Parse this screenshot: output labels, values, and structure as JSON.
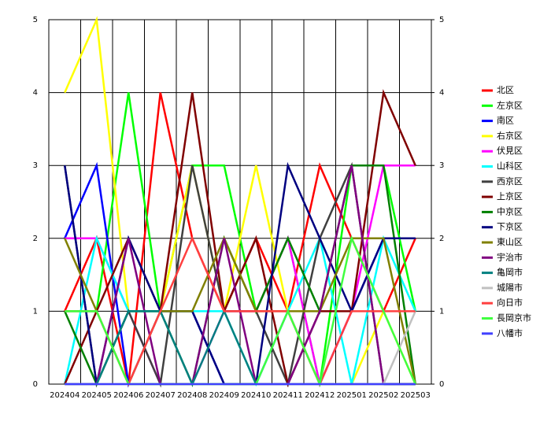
{
  "chart_data": {
    "type": "line",
    "categories": [
      "202404",
      "202405",
      "202406",
      "202407",
      "202408",
      "202409",
      "202410",
      "202411",
      "202412",
      "202501",
      "202502",
      "202503"
    ],
    "ylim": [
      0,
      5
    ],
    "yticks": [
      0,
      1,
      2,
      3,
      4,
      5
    ],
    "y2lim": [
      0,
      5
    ],
    "y2ticks": [
      0,
      1,
      2,
      3,
      4,
      5
    ],
    "grid": true,
    "legend": "right",
    "series": [
      {
        "name": "北区",
        "color": "#ff0000",
        "values": [
          1,
          2,
          0,
          4,
          2,
          1,
          2,
          1,
          3,
          2,
          1,
          2
        ]
      },
      {
        "name": "左京区",
        "color": "#00ff00",
        "values": [
          1,
          1,
          4,
          1,
          3,
          3,
          1,
          2,
          0,
          3,
          3,
          1
        ]
      },
      {
        "name": "南区",
        "color": "#0000ff",
        "values": [
          2,
          3,
          0,
          1,
          1,
          0,
          0,
          1,
          0,
          1,
          2,
          2
        ]
      },
      {
        "name": "右京区",
        "color": "#ffff00",
        "values": [
          4,
          5,
          1,
          1,
          3,
          1,
          3,
          1,
          0,
          0,
          1,
          0
        ]
      },
      {
        "name": "伏見区",
        "color": "#ff00ff",
        "values": [
          2,
          2,
          1,
          0,
          0,
          1,
          1,
          2,
          0,
          1,
          3,
          3
        ]
      },
      {
        "name": "山科区",
        "color": "#00ffff",
        "values": [
          0,
          2,
          1,
          1,
          1,
          1,
          0,
          1,
          2,
          0,
          2,
          1
        ]
      },
      {
        "name": "西京区",
        "color": "#404040",
        "values": [
          3,
          0,
          1,
          0,
          3,
          1,
          1,
          0,
          2,
          3,
          0,
          0
        ]
      },
      {
        "name": "上京区",
        "color": "#800000",
        "values": [
          0,
          1,
          2,
          1,
          4,
          1,
          2,
          0,
          1,
          1,
          4,
          3
        ]
      },
      {
        "name": "中京区",
        "color": "#008000",
        "values": [
          1,
          0,
          1,
          1,
          0,
          2,
          1,
          2,
          1,
          3,
          3,
          0
        ]
      },
      {
        "name": "下京区",
        "color": "#000080",
        "values": [
          3,
          0,
          2,
          1,
          1,
          0,
          0,
          3,
          2,
          1,
          2,
          2
        ]
      },
      {
        "name": "東山区",
        "color": "#808000",
        "values": [
          2,
          1,
          0,
          1,
          1,
          2,
          1,
          1,
          1,
          2,
          2,
          0
        ]
      },
      {
        "name": "宇治市",
        "color": "#800080",
        "values": [
          0,
          0,
          2,
          0,
          0,
          2,
          0,
          0,
          1,
          3,
          0,
          0
        ]
      },
      {
        "name": "亀岡市",
        "color": "#008080",
        "values": [
          0,
          0,
          1,
          1,
          0,
          1,
          0,
          0,
          0,
          0,
          0,
          0
        ]
      },
      {
        "name": "城陽市",
        "color": "#c0c0c0",
        "values": [
          0,
          0,
          0,
          0,
          0,
          0,
          0,
          0,
          0,
          0,
          0,
          1
        ]
      },
      {
        "name": "向日市",
        "color": "#ff4040",
        "values": [
          1,
          1,
          0,
          1,
          2,
          1,
          1,
          1,
          0,
          1,
          1,
          1
        ]
      },
      {
        "name": "長岡京市",
        "color": "#40ff40",
        "values": [
          1,
          1,
          0,
          0,
          0,
          0,
          0,
          1,
          0,
          2,
          1,
          0
        ]
      },
      {
        "name": "八幡市",
        "color": "#4040ff",
        "values": [
          0,
          0,
          0,
          0,
          0,
          0,
          0,
          0,
          0,
          0,
          0,
          0
        ]
      }
    ]
  }
}
